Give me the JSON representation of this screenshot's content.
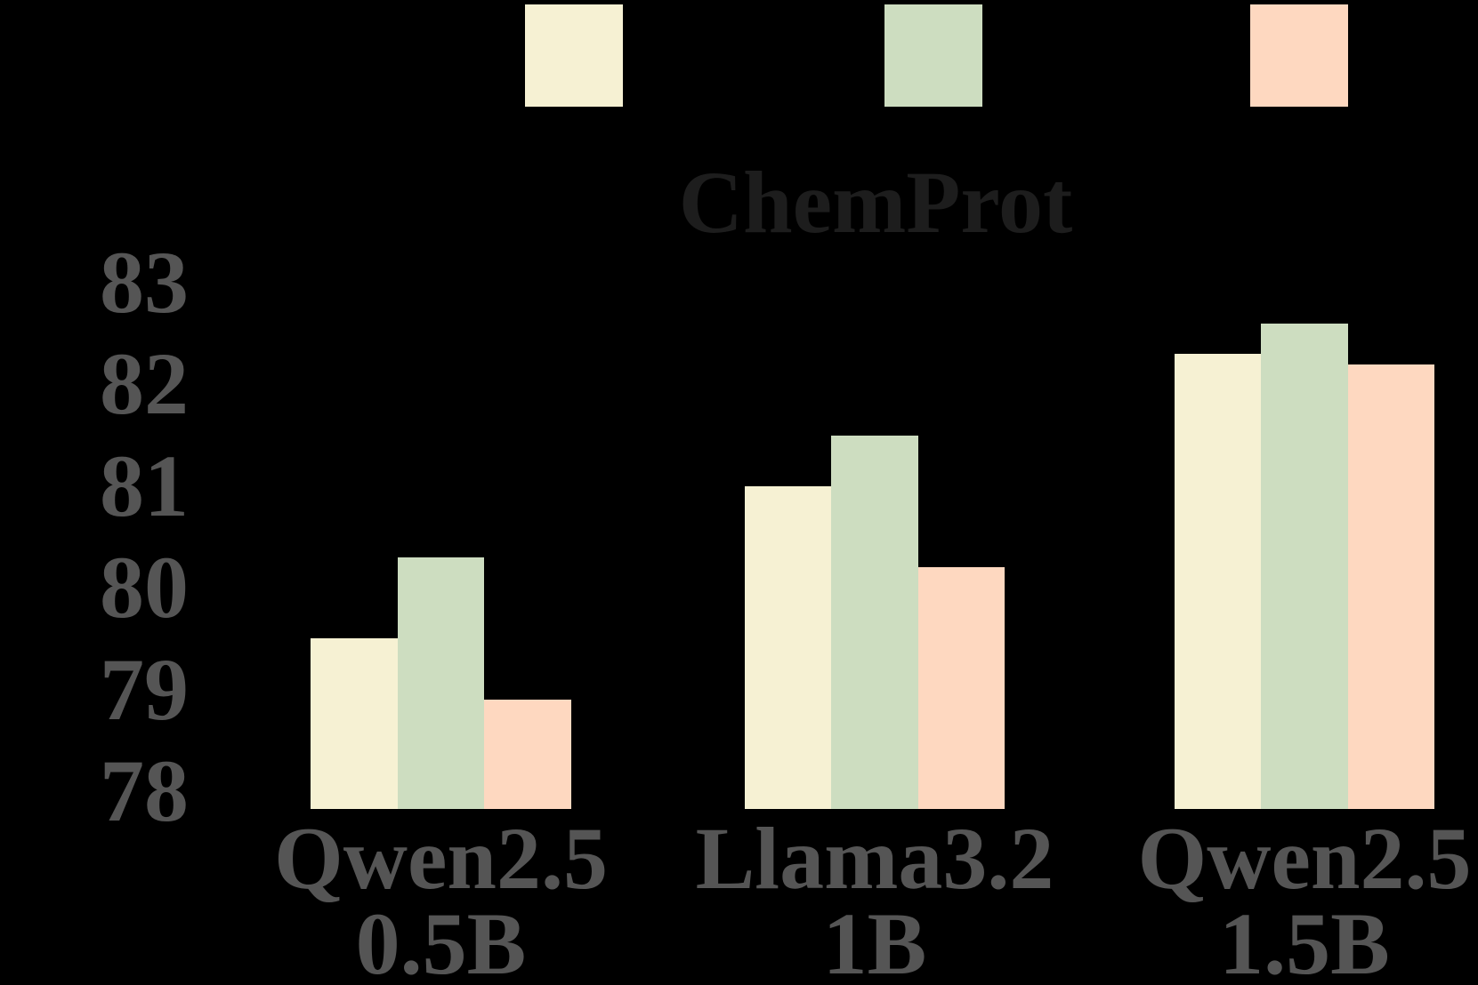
{
  "figure": {
    "background": "#000000",
    "title_color": "#1d1d1d",
    "label_color": "#555555"
  },
  "chart_data": {
    "type": "bar",
    "title": "ChemProt",
    "categories": [
      [
        "Qwen2.5",
        "0.5B"
      ],
      [
        "Llama3.2",
        "1B"
      ],
      [
        "Qwen2.5",
        "1.5B"
      ]
    ],
    "series": [
      {
        "color": "#f6f1d3",
        "values": [
          79.5,
          81.0,
          82.3
        ]
      },
      {
        "color": "#cdddc0",
        "values": [
          80.3,
          81.5,
          82.6
        ]
      },
      {
        "color": "#fed8c0",
        "values": [
          78.9,
          80.2,
          82.2
        ]
      }
    ],
    "yticks": [
      "83",
      "82",
      "81",
      "80",
      "79",
      "78"
    ],
    "ytick_values": [
      83,
      82,
      81,
      80,
      79,
      78
    ],
    "ylim": [
      77.8,
      83.4
    ],
    "grid": false,
    "legend_position": "top",
    "legend_labels_visible": false
  }
}
